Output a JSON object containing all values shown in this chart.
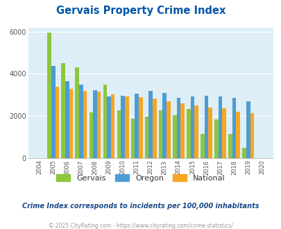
{
  "title": "Gervais Property Crime Index",
  "years": [
    2004,
    2005,
    2006,
    2007,
    2008,
    2009,
    2010,
    2011,
    2012,
    2013,
    2014,
    2015,
    2016,
    2017,
    2018,
    2019,
    2020
  ],
  "gervais": [
    0,
    5950,
    4500,
    4300,
    2150,
    3480,
    2250,
    1870,
    1960,
    2250,
    2020,
    2340,
    1150,
    1820,
    1140,
    490,
    0
  ],
  "oregon": [
    0,
    4380,
    3650,
    3500,
    3220,
    2920,
    2960,
    3070,
    3200,
    3100,
    2850,
    2930,
    2970,
    2940,
    2850,
    2680,
    0
  ],
  "national": [
    0,
    3380,
    3290,
    3200,
    3150,
    3010,
    2940,
    2880,
    2830,
    2700,
    2600,
    2490,
    2390,
    2360,
    2200,
    2120,
    0
  ],
  "gervais_color": "#8dc63f",
  "oregon_color": "#4d9cd4",
  "national_color": "#f5a623",
  "bg_color": "#ddeef6",
  "ylim": [
    0,
    6200
  ],
  "yticks": [
    0,
    2000,
    4000,
    6000
  ],
  "subtitle": "Crime Index corresponds to incidents per 100,000 inhabitants",
  "footnote": "© 2025 CityRating.com - https://www.cityrating.com/crime-statistics/",
  "title_color": "#0057a8",
  "subtitle_color": "#1a4a8a",
  "footnote_color": "#999999",
  "legend_text_color": "#333333"
}
